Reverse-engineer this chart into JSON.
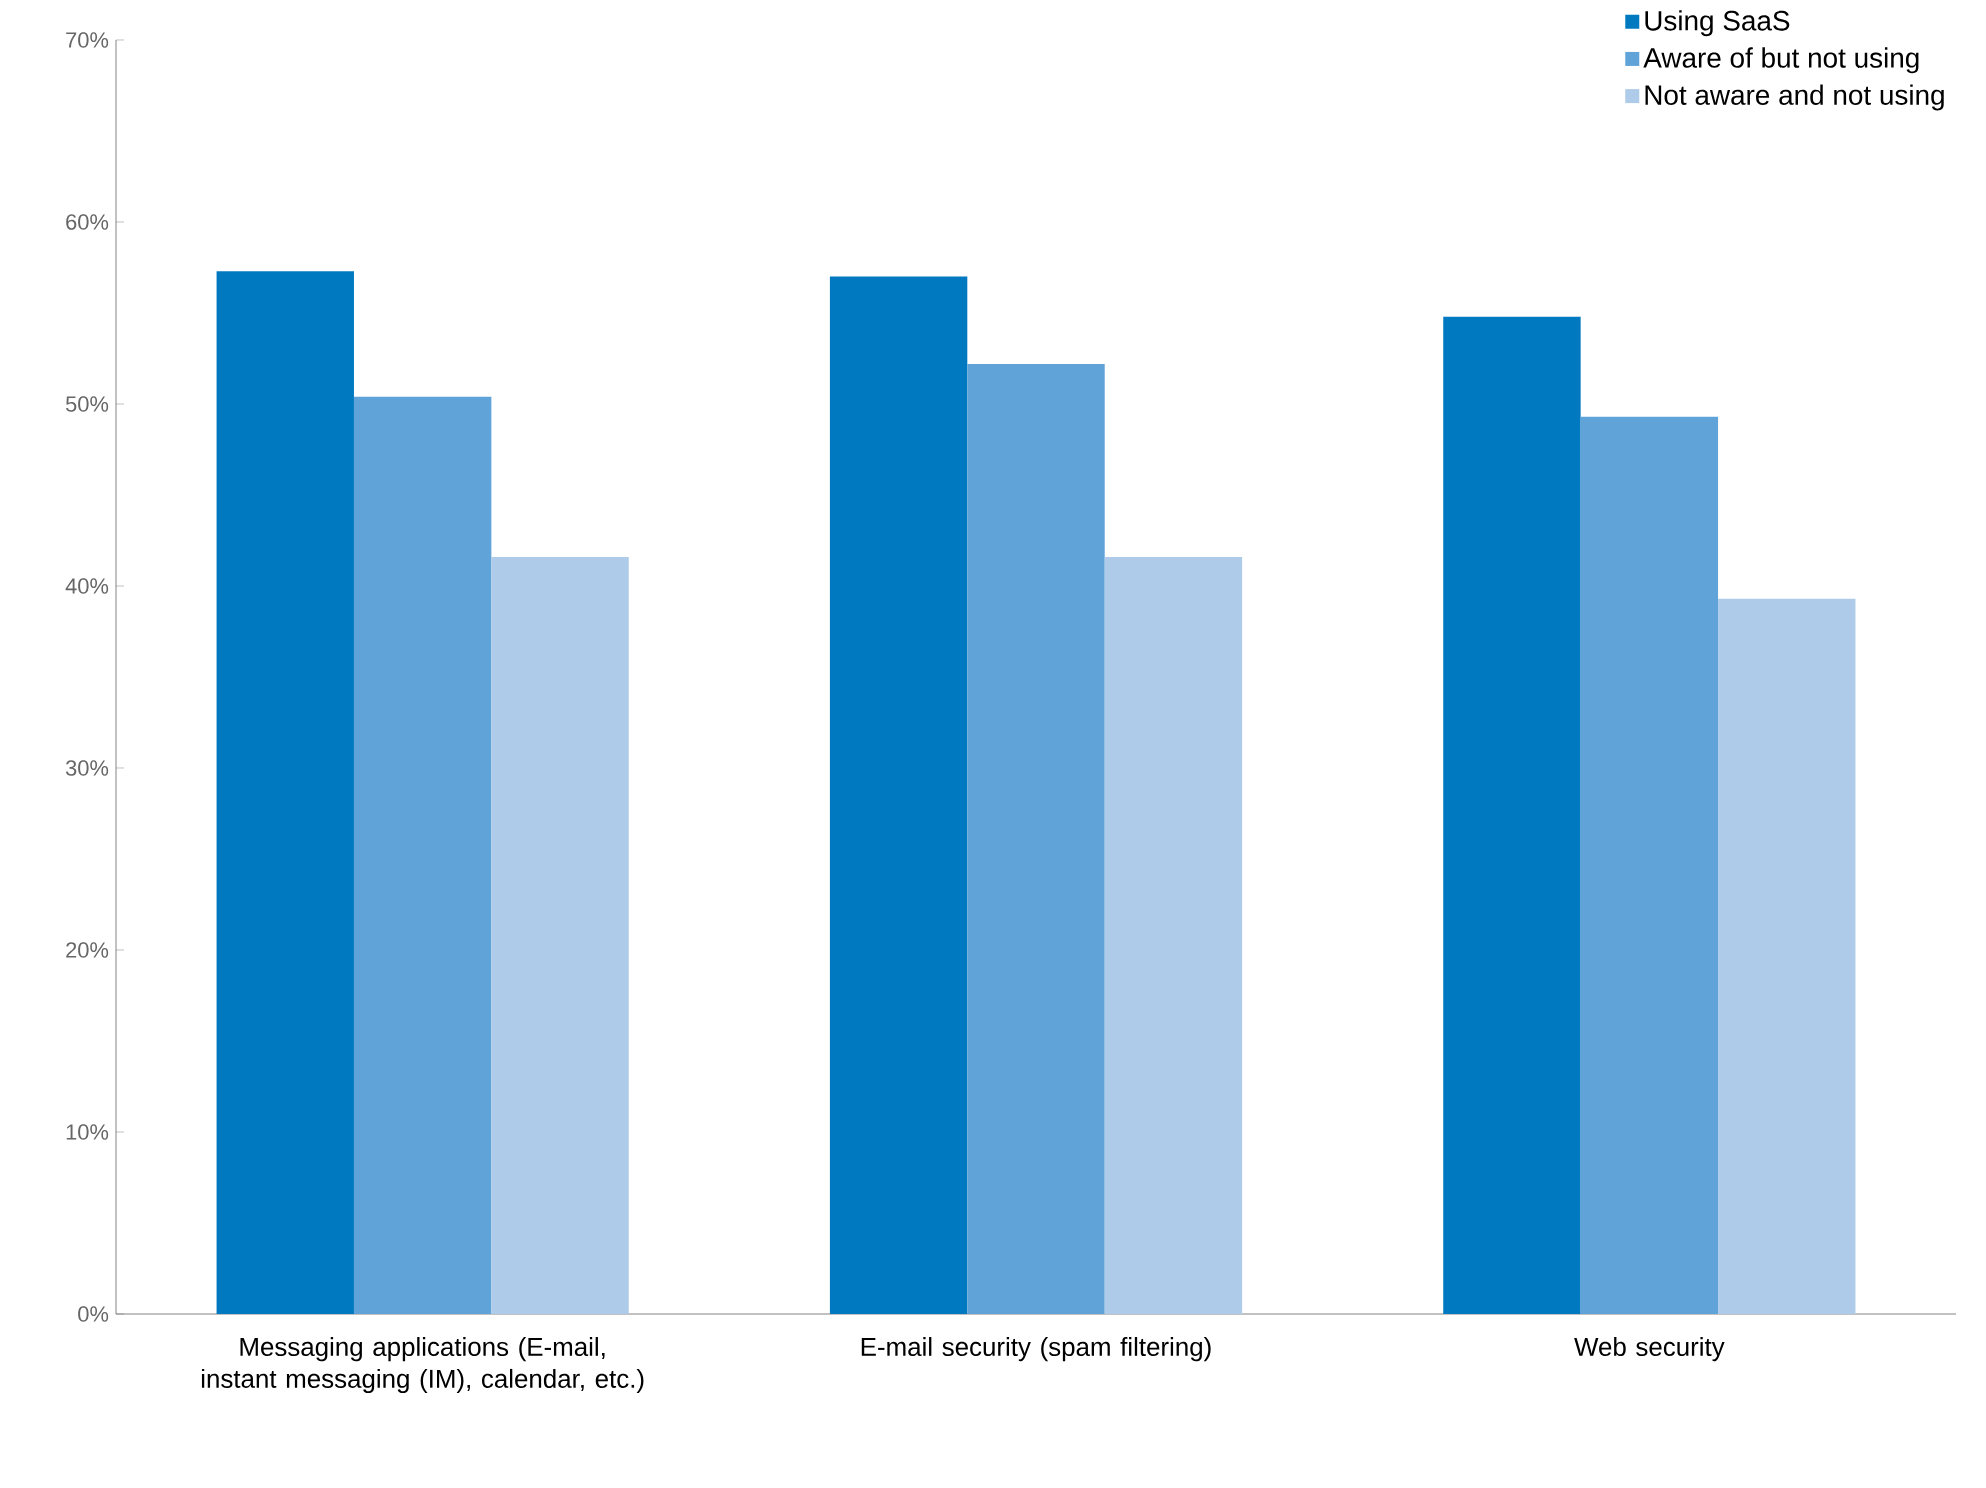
{
  "chart_data": {
    "type": "bar",
    "categories": [
      "Messaging applications (E-mail, instant messaging (IM), calendar, etc.)",
      "E-mail security (spam filtering)",
      "Web security"
    ],
    "series": [
      {
        "name": "Using SaaS",
        "color": "#0079c1",
        "values": [
          57.3,
          57.0,
          54.8
        ]
      },
      {
        "name": "Aware of but not using",
        "color": "#5fa3d9",
        "values": [
          50.4,
          52.2,
          49.3
        ]
      },
      {
        "name": "Not aware and not using",
        "color": "#aecbea",
        "values": [
          41.6,
          41.6,
          39.3
        ]
      }
    ],
    "ylim": [
      0,
      70
    ],
    "yticks": [
      {
        "value": 0,
        "label": "0%"
      },
      {
        "value": 10,
        "label": "10%"
      },
      {
        "value": 20,
        "label": "20%"
      },
      {
        "value": 30,
        "label": "30%"
      },
      {
        "value": 40,
        "label": "40%"
      },
      {
        "value": 50,
        "label": "50%"
      },
      {
        "value": 60,
        "label": "60%"
      },
      {
        "value": 70,
        "label": "70%"
      }
    ],
    "grid": false,
    "legend": "top right"
  }
}
